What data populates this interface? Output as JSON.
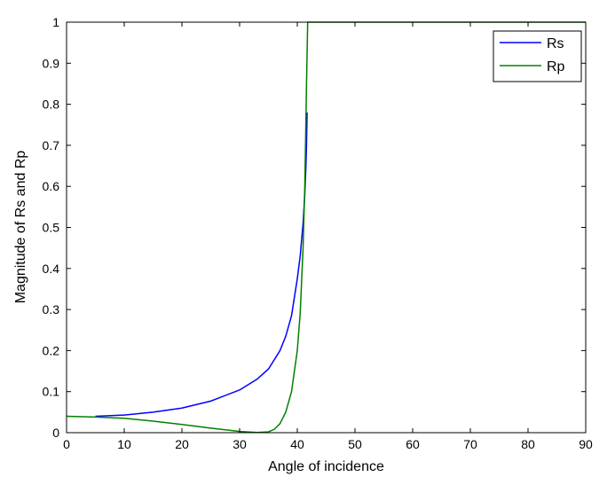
{
  "chart_data": {
    "type": "line",
    "title": "",
    "xlabel": "Angle of incidence",
    "ylabel": "Magnitude of Rs and Rp",
    "xlim": [
      0,
      90
    ],
    "ylim": [
      0,
      1
    ],
    "x_ticks": [
      "0",
      "10",
      "20",
      "30",
      "40",
      "50",
      "60",
      "70",
      "80",
      "90"
    ],
    "y_ticks": [
      "0",
      "0.1",
      "0.2",
      "0.3",
      "0.4",
      "0.5",
      "0.6",
      "0.7",
      "0.8",
      "0.9",
      "1"
    ],
    "grid": false,
    "legend": {
      "position": "top-right",
      "entries": [
        "Rs",
        "Rp"
      ]
    },
    "series": [
      {
        "name": "Rs",
        "color": "#0000ff",
        "x": [
          5,
          10,
          15,
          20,
          25,
          30,
          33,
          35,
          37,
          38,
          39,
          40,
          40.5,
          41,
          41.3,
          41.5,
          41.6,
          41.7
        ],
        "y": [
          0.04,
          0.043,
          0.05,
          0.06,
          0.077,
          0.104,
          0.13,
          0.155,
          0.2,
          0.235,
          0.285,
          0.375,
          0.43,
          0.51,
          0.58,
          0.65,
          0.7,
          0.78
        ]
      },
      {
        "name": "Rp",
        "color": "#008000",
        "x": [
          0,
          5,
          10,
          15,
          20,
          25,
          30,
          33,
          35,
          36,
          37,
          38,
          39,
          40,
          40.5,
          41,
          41.3,
          41.6,
          41.8,
          90
        ],
        "y": [
          0.04,
          0.038,
          0.035,
          0.028,
          0.02,
          0.011,
          0.003,
          0.0005,
          0.002,
          0.008,
          0.022,
          0.05,
          0.1,
          0.2,
          0.29,
          0.45,
          0.6,
          0.85,
          1.0,
          1.0
        ]
      }
    ]
  }
}
